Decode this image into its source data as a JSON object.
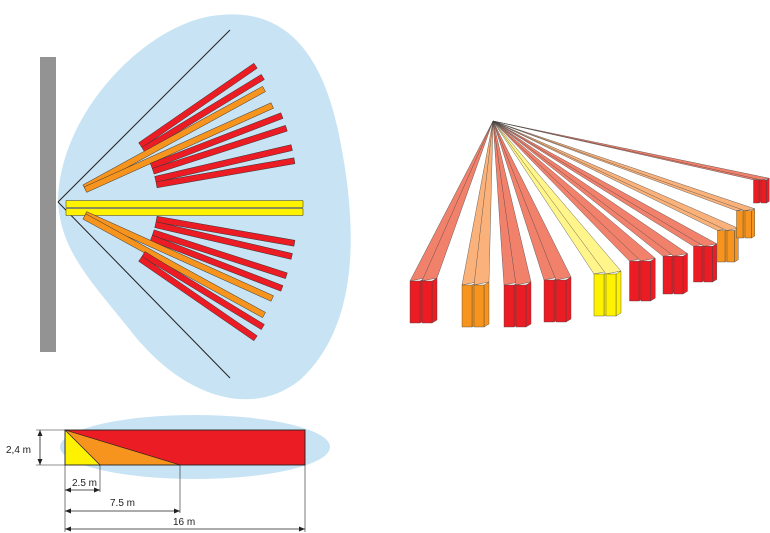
{
  "colors": {
    "coverage": "#c8e4f4",
    "wall": "#939393",
    "red": "#ec1c24",
    "red_light": "#f2816c",
    "orange": "#f7941d",
    "orange_light": "#fbb27a",
    "yellow": "#fff200",
    "yellow_light": "#fff58a",
    "line": "#222222"
  },
  "top_view": {
    "beams": [
      {
        "zone": "long",
        "color": "red"
      },
      {
        "zone": "medium",
        "color": "orange"
      },
      {
        "zone": "long",
        "color": "red"
      },
      {
        "zone": "long",
        "color": "red"
      },
      {
        "zone": "short",
        "color": "yellow"
      },
      {
        "zone": "long",
        "color": "red"
      },
      {
        "zone": "long",
        "color": "red"
      },
      {
        "zone": "medium",
        "color": "orange"
      },
      {
        "zone": "long",
        "color": "red"
      }
    ]
  },
  "side_view": {
    "height_label": "2,4 m",
    "dimensions": [
      {
        "label": "2.5 m",
        "distance_m": 2.5
      },
      {
        "label": "7.5 m",
        "distance_m": 7.5
      },
      {
        "label": "16 m",
        "distance_m": 16
      }
    ]
  },
  "perspective_view": {
    "curtains": [
      "red",
      "orange",
      "red",
      "red",
      "yellow",
      "red",
      "red",
      "red",
      "orange",
      "orange",
      "red"
    ]
  }
}
